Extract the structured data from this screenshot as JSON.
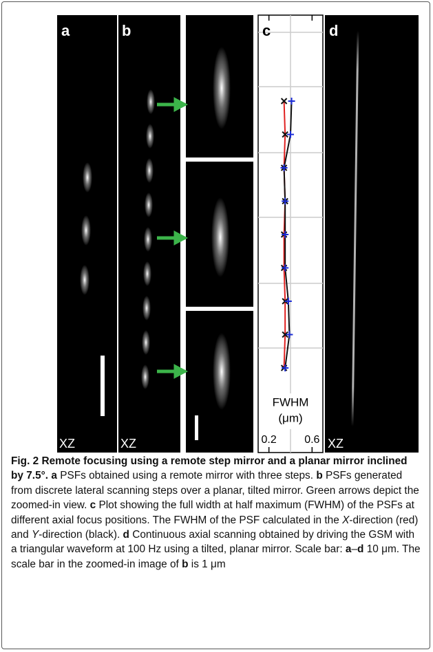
{
  "figure": {
    "panel_labels": [
      "a",
      "b",
      "c",
      "d"
    ],
    "view_labels": [
      "XZ",
      "XZ",
      "XZ"
    ]
  },
  "chart_data": {
    "type": "line",
    "xlabel": "FWHM",
    "xunit": "(μm)",
    "categories": [
      null,
      null,
      null,
      null,
      null,
      null,
      null,
      null,
      null
    ],
    "xlim": [
      0.1,
      0.7
    ],
    "xticks": [
      0.2,
      0.6
    ],
    "series": [
      {
        "color": "#e02020",
        "marker": "x",
        "marker_color": "#111",
        "values": [
          0.34,
          0.35,
          0.34,
          0.35,
          0.34,
          0.34,
          0.35,
          0.35,
          0.34
        ]
      },
      {
        "color": "#111111",
        "marker": "+",
        "marker_color": "#1a2bd6",
        "values": [
          0.41,
          0.4,
          0.34,
          0.35,
          0.35,
          0.35,
          0.38,
          0.39,
          0.35
        ]
      }
    ]
  },
  "caption": {
    "runs": [
      {
        "text": "Fig. 2 Remote focusing using a remote step mirror and a planar mirror inclined by 7.5°.",
        "style": "bold"
      },
      {
        "text": " a",
        "style": "bold"
      },
      {
        "text": " PSFs obtained using a remote mirror with three steps. ",
        "style": "normal"
      },
      {
        "text": "b",
        "style": "bold"
      },
      {
        "text": " PSFs generated from discrete lateral scanning steps over a planar, tilted mirror. Green arrows depict the zoomed-in view. ",
        "style": "normal"
      },
      {
        "text": "c",
        "style": "bold"
      },
      {
        "text": " Plot showing the full width at half maximum (FWHM) of the PSFs at different axial focus positions. The FWHM of the PSF calculated in the ",
        "style": "normal"
      },
      {
        "text": "X",
        "style": "italic"
      },
      {
        "text": "-direction (red) and ",
        "style": "normal"
      },
      {
        "text": "Y",
        "style": "italic"
      },
      {
        "text": "-direction (black). ",
        "style": "normal"
      },
      {
        "text": "d",
        "style": "bold"
      },
      {
        "text": " Continuous axial scanning obtained by driving the GSM with a triangular waveform at 100 Hz using a tilted, planar mirror. Scale bar: ",
        "style": "normal"
      },
      {
        "text": "a",
        "style": "bold"
      },
      {
        "text": "–",
        "style": "normal"
      },
      {
        "text": "d",
        "style": "bold"
      },
      {
        "text": " 10 μm. The scale bar in the zoomed-in image of ",
        "style": "normal"
      },
      {
        "text": "b",
        "style": "bold"
      },
      {
        "text": " is 1 μm",
        "style": "normal"
      }
    ]
  }
}
